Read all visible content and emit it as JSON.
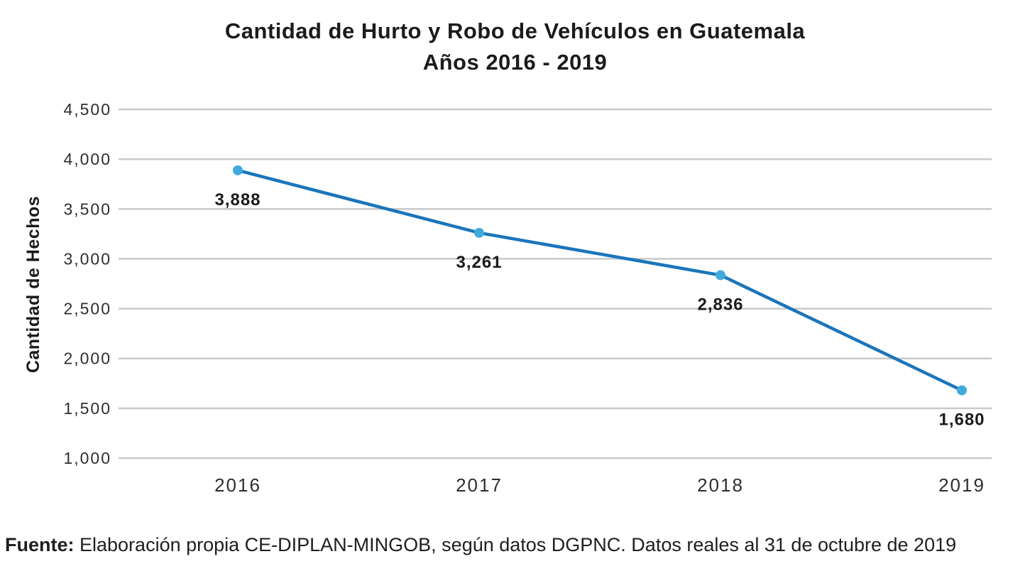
{
  "title": {
    "line1": "Cantidad de Hurto y Robo de Vehículos en Guatemala",
    "line2": "Años 2016 - 2019"
  },
  "footer": {
    "source_label": "Fuente:",
    "source_text": " Elaboración propia CE-DIPLAN-MINGOB, según datos DGPNC. Datos reales al 31 de octubre de 2019"
  },
  "chart_data": {
    "type": "line",
    "title": "Cantidad de Hurto y Robo de Vehículos en Guatemala Años 2016 - 2019",
    "categories": [
      "2016",
      "2017",
      "2018",
      "2019"
    ],
    "series": [
      {
        "name": "Cantidad de Hechos",
        "values": [
          3888,
          3261,
          2836,
          1680
        ]
      }
    ],
    "data_labels": [
      "3,888",
      "3,261",
      "2,836",
      "1,680"
    ],
    "xlabel": "",
    "ylabel": "Cantidad de Hechos",
    "ylim": [
      1000,
      4500
    ],
    "y_tick_values": [
      4500,
      4000,
      3500,
      3000,
      2500,
      2000,
      1500,
      1000
    ],
    "y_tick_labels": [
      "4,500",
      "4,000",
      "3,500",
      "3,000",
      "2,500",
      "2,000",
      "1,500",
      "1,000"
    ],
    "grid": "horizontal",
    "legend": "none",
    "colors": {
      "line": "#1b75bb",
      "marker": "#41aadd",
      "grid": "#c9c9c9",
      "text": "#2e2e2e"
    }
  }
}
